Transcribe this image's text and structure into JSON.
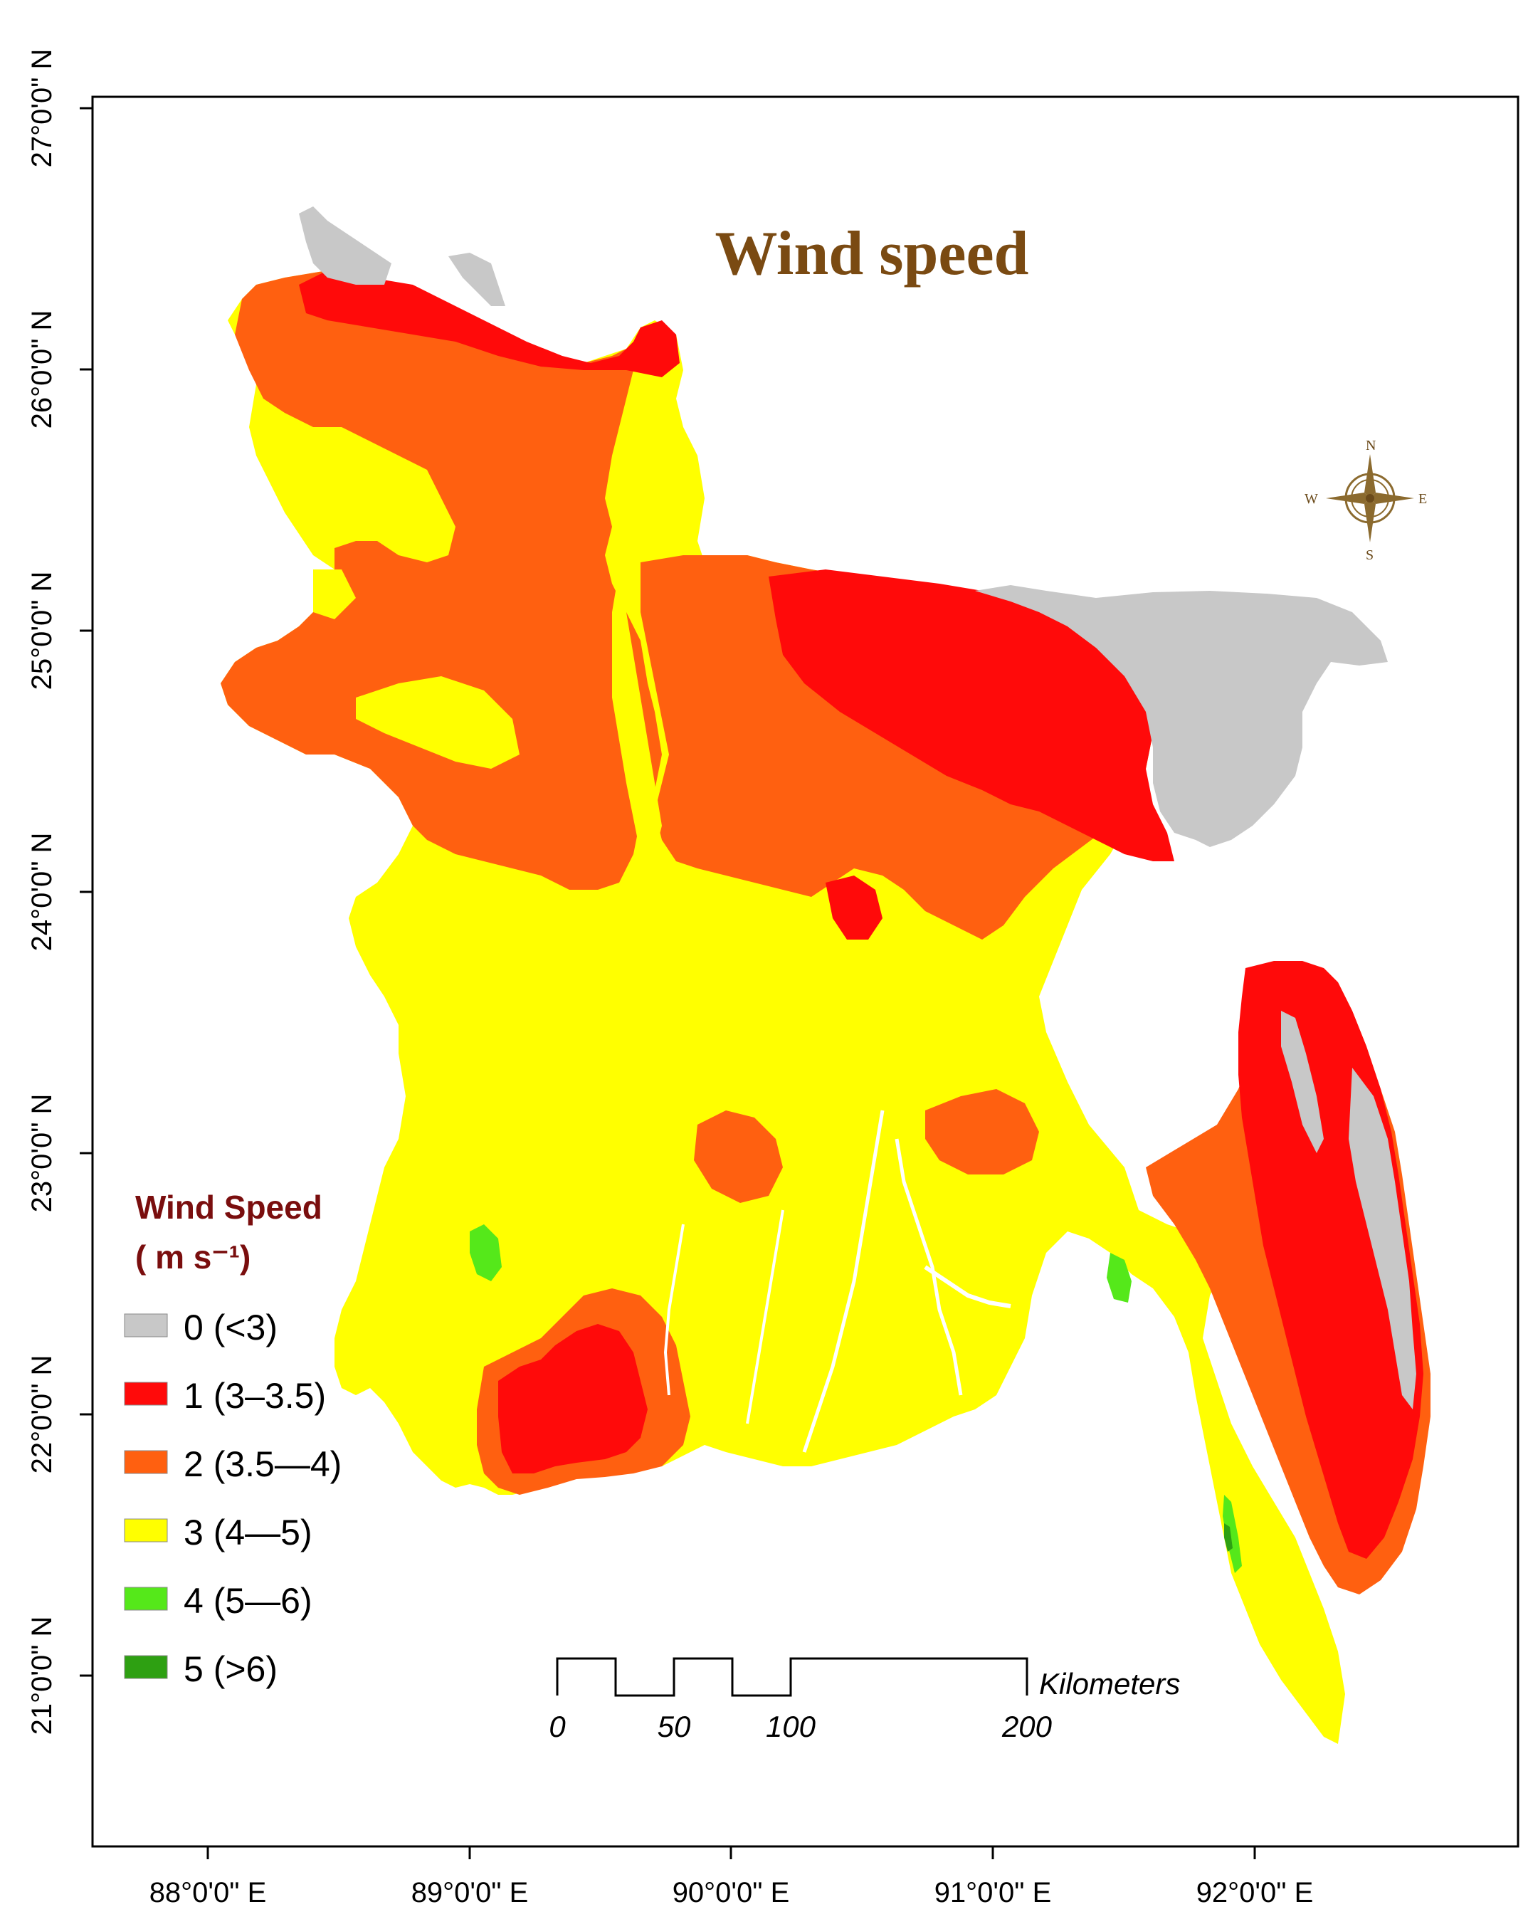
{
  "title": "Wind speed",
  "axes": {
    "x_ticks": [
      "88°0'0\" E",
      "89°0'0\" E",
      "90°0'0\" E",
      "91°0'0\" E",
      "92°0'0\" E"
    ],
    "y_ticks": [
      "27°0'0\" N",
      "26°0'0\" N",
      "25°0'0\" N",
      "24°0'0\" N",
      "23°0'0\" N",
      "22°0'0\" N",
      "21°0'0\" N"
    ]
  },
  "legend": {
    "title": "Wind Speed",
    "unit": "( m s⁻¹)",
    "items": [
      {
        "label": "0  (<3)",
        "color": "#c8c8c8"
      },
      {
        "label": "1 (3–3.5)",
        "color": "#ff0a0a"
      },
      {
        "label": "2 (3.5—4)",
        "color": "#ff6010"
      },
      {
        "label": "3 (4—5)",
        "color": "#ffff00"
      },
      {
        "label": "4 (5—6)",
        "color": "#55e81a"
      },
      {
        "label": "5 (>6)",
        "color": "#2ea012"
      }
    ]
  },
  "scale_bar": {
    "unit": "Kilometers",
    "labels": [
      "0",
      "50",
      "100",
      "200"
    ]
  },
  "compass": {
    "n": "N",
    "s": "S",
    "e": "E",
    "w": "W"
  }
}
